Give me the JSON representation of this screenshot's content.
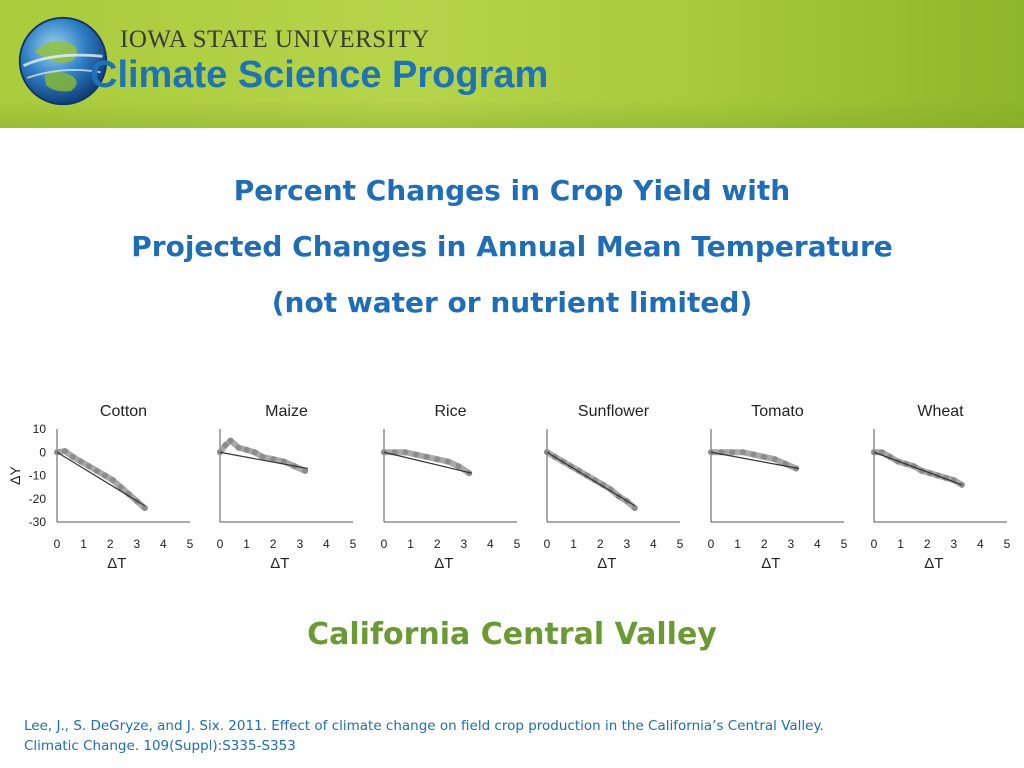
{
  "header": {
    "university": "IOWA STATE UNIVERSITY",
    "program": "Climate Science Program",
    "logo_icon": "globe-logo-icon",
    "colors": {
      "band": "#aacb3c",
      "program_text": "#1e72b6",
      "title_text": "#1f6db6",
      "region_text": "#6b9a34"
    }
  },
  "title": {
    "line1": "Percent Changes in Crop Yield with",
    "line2": "Projected Changes in Annual Mean Temperature",
    "line3": "(not water or nutrient limited)"
  },
  "chart_data": {
    "type": "scatter",
    "xlabel": "ΔT",
    "ylabel": "ΔY",
    "xlim": [
      0,
      5
    ],
    "ylim": [
      -30,
      10
    ],
    "x_ticks": [
      "0",
      "1",
      "2",
      "3",
      "4",
      "5"
    ],
    "y_ticks": [
      "10",
      "0",
      "-10",
      "-20",
      "-30"
    ],
    "grid": false,
    "panels": [
      {
        "title": "Cotton",
        "points": [
          [
            0,
            0
          ],
          [
            0.3,
            0.5
          ],
          [
            0.6,
            -2
          ],
          [
            0.9,
            -4
          ],
          [
            1.2,
            -6
          ],
          [
            1.5,
            -8
          ],
          [
            1.8,
            -10
          ],
          [
            2.1,
            -12
          ],
          [
            2.4,
            -15
          ],
          [
            2.7,
            -18
          ],
          [
            3.0,
            -21
          ],
          [
            3.3,
            -24
          ]
        ],
        "trend": [
          [
            0,
            0
          ],
          [
            3.3,
            -23
          ]
        ]
      },
      {
        "title": "Maize",
        "points": [
          [
            0,
            0
          ],
          [
            0.2,
            3
          ],
          [
            0.4,
            5
          ],
          [
            0.7,
            2
          ],
          [
            1.0,
            1
          ],
          [
            1.3,
            0
          ],
          [
            1.6,
            -2
          ],
          [
            2.0,
            -3
          ],
          [
            2.4,
            -4
          ],
          [
            2.8,
            -6
          ],
          [
            3.2,
            -8
          ]
        ],
        "trend": [
          [
            0,
            0
          ],
          [
            3.3,
            -7
          ]
        ]
      },
      {
        "title": "Rice",
        "points": [
          [
            0,
            0
          ],
          [
            0.4,
            0
          ],
          [
            0.8,
            0
          ],
          [
            1.2,
            -1
          ],
          [
            1.6,
            -2
          ],
          [
            2.0,
            -3
          ],
          [
            2.4,
            -4
          ],
          [
            2.8,
            -6
          ],
          [
            3.2,
            -9
          ]
        ],
        "trend": [
          [
            0,
            0
          ],
          [
            3.3,
            -9
          ]
        ]
      },
      {
        "title": "Sunflower",
        "points": [
          [
            0,
            0
          ],
          [
            0.3,
            -2
          ],
          [
            0.6,
            -4
          ],
          [
            0.9,
            -6
          ],
          [
            1.2,
            -8
          ],
          [
            1.5,
            -10
          ],
          [
            1.8,
            -12
          ],
          [
            2.1,
            -14
          ],
          [
            2.4,
            -16
          ],
          [
            2.7,
            -19
          ],
          [
            3.0,
            -21
          ],
          [
            3.3,
            -24
          ]
        ],
        "trend": [
          [
            0,
            0
          ],
          [
            3.3,
            -23
          ]
        ]
      },
      {
        "title": "Tomato",
        "points": [
          [
            0,
            0
          ],
          [
            0.4,
            0
          ],
          [
            0.8,
            0
          ],
          [
            1.2,
            0
          ],
          [
            1.6,
            -1
          ],
          [
            2.0,
            -2
          ],
          [
            2.4,
            -3
          ],
          [
            2.8,
            -5
          ],
          [
            3.2,
            -7
          ]
        ],
        "trend": [
          [
            0,
            0
          ],
          [
            3.3,
            -7
          ]
        ]
      },
      {
        "title": "Wheat",
        "points": [
          [
            0,
            0
          ],
          [
            0.3,
            0
          ],
          [
            0.6,
            -2
          ],
          [
            0.9,
            -4
          ],
          [
            1.2,
            -5
          ],
          [
            1.5,
            -6
          ],
          [
            1.8,
            -8
          ],
          [
            2.1,
            -9
          ],
          [
            2.4,
            -10
          ],
          [
            2.7,
            -11
          ],
          [
            3.0,
            -12
          ],
          [
            3.3,
            -14
          ]
        ],
        "trend": [
          [
            0,
            0
          ],
          [
            3.3,
            -14
          ]
        ]
      }
    ]
  },
  "region": "California Central Valley",
  "citation": {
    "line1": "Lee, J., S. DeGryze, and J. Six. 2011. Effect of climate change on field crop production in the California’s Central Valley.",
    "line2": "Climatic Change. 109(Suppl):S335-S353"
  }
}
